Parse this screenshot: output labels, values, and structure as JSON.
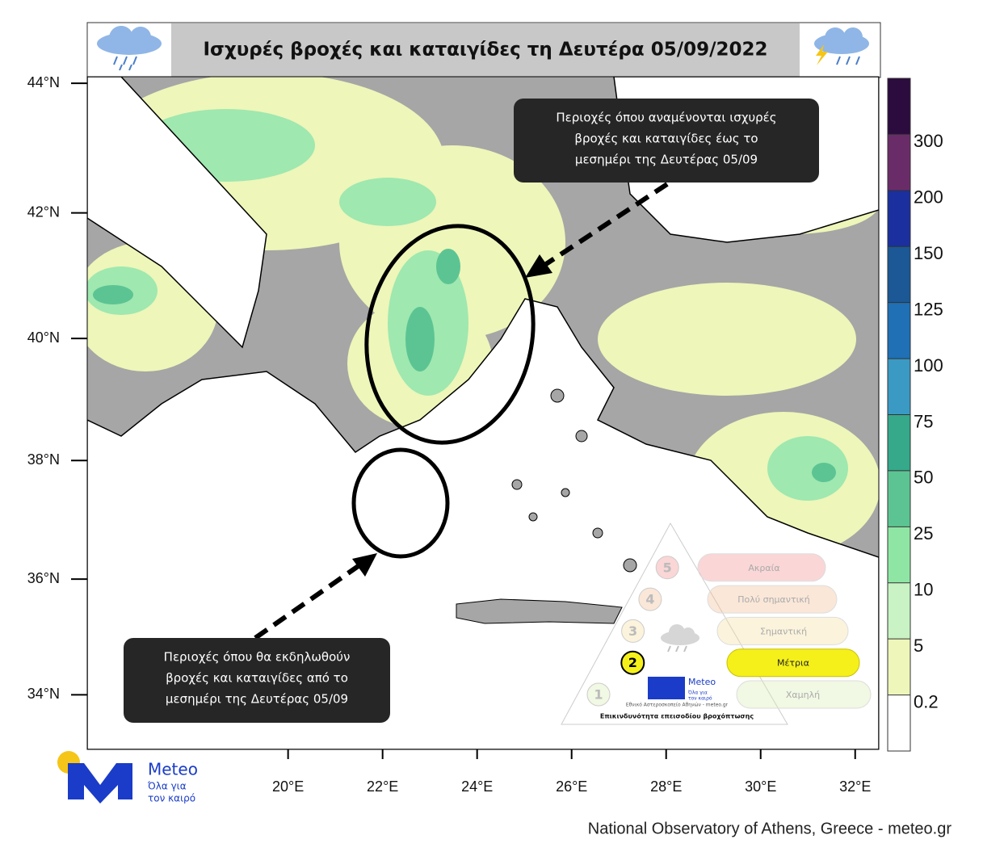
{
  "header": {
    "title": "Ισχυρές βροχές και καταιγίδες τη Δευτέρα 05/09/2022"
  },
  "map": {
    "lonlim": [
      15.75,
      32.5
    ],
    "latlim": [
      33.04,
      44.1
    ],
    "lon_ticks": [
      {
        "value": 20,
        "label": "20°E"
      },
      {
        "value": 22,
        "label": "22°E"
      },
      {
        "value": 24,
        "label": "24°E"
      },
      {
        "value": 26,
        "label": "26°E"
      },
      {
        "value": 28,
        "label": "28°E"
      },
      {
        "value": 30,
        "label": "30°E"
      },
      {
        "value": 32,
        "label": "32°E"
      }
    ],
    "lat_ticks": [
      {
        "value": 34,
        "label": "34°N"
      },
      {
        "value": 36,
        "label": "36°N"
      },
      {
        "value": 38,
        "label": "38°N"
      },
      {
        "value": 40,
        "label": "40°N"
      },
      {
        "value": 42,
        "label": "42°N"
      },
      {
        "value": 44,
        "label": "44°N"
      }
    ]
  },
  "colorbar": {
    "colors": [
      "#ffffff",
      "#eef6b9",
      "#c9f3c4",
      "#8fe6a4",
      "#5cc493",
      "#35a98a",
      "#3b9ac3",
      "#1f70b5",
      "#1b5895",
      "#1b2f9e",
      "#6a2c68",
      "#2c0b3e"
    ],
    "ticks": [
      0.2,
      5,
      10,
      25,
      50,
      75,
      100,
      125,
      150,
      200,
      300
    ]
  },
  "callouts": [
    {
      "lines": [
        "Περιοχές όπου αναμένονται ισχυρές",
        "βροχές και καταιγίδες  έως το",
        "μεσημέρι της Δευτέρας 05/09"
      ]
    },
    {
      "lines": [
        "Περιοχές όπου θα εκδηλωθούν",
        "βροχές και καταιγίδες από το",
        "μεσημέρι της Δευτέρας  05/09"
      ]
    }
  ],
  "risk_scale": {
    "title": "Επικινδυνότητα επεισοδίου βροχόπτωσης",
    "active_level": 2,
    "levels": [
      {
        "number": 1,
        "label": "Χαμηλή"
      },
      {
        "number": 2,
        "label": "Μέτρια"
      },
      {
        "number": 3,
        "label": "Σημαντική"
      },
      {
        "number": 4,
        "label": "Πολύ σημαντική"
      },
      {
        "number": 5,
        "label": "Ακραία"
      }
    ],
    "brand": "Meteo",
    "slogan_lines": [
      "Όλα για",
      "τον καιρό"
    ],
    "organization": "Εθνικό Αστεροσκοπείο Αθηνών - meteo.gr"
  },
  "logo": {
    "brand": "Meteo",
    "slogan_lines": [
      "Όλα για",
      "τον καιρό"
    ]
  },
  "footer": "National Observatory of Athens, Greece - meteo.gr"
}
